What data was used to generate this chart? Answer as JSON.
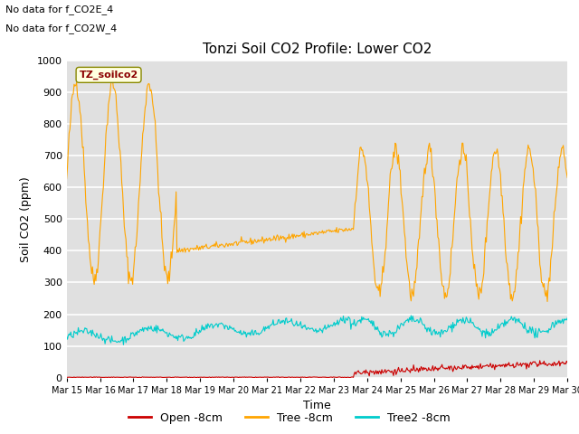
{
  "title": "Tonzi Soil CO2 Profile: Lower CO2",
  "xlabel": "Time",
  "ylabel": "Soil CO2 (ppm)",
  "ylim": [
    0,
    1000
  ],
  "plot_bg_color": "#e0e0e0",
  "annotation_text1": "No data for f_CO2E_4",
  "annotation_text2": "No data for f_CO2W_4",
  "legend_label1": "Open -8cm",
  "legend_label2": "Tree -8cm",
  "legend_label3": "Tree2 -8cm",
  "color_open": "#cc0000",
  "color_tree": "#ffa500",
  "color_tree2": "#00cccc",
  "watermark_text": "TZ_soilco2",
  "xtick_labels": [
    "Mar 15",
    "Mar 16",
    "Mar 17",
    "Mar 18",
    "Mar 19",
    "Mar 20",
    "Mar 21",
    "Mar 22",
    "Mar 23",
    "Mar 24",
    "Mar 25",
    "Mar 26",
    "Mar 27",
    "Mar 28",
    "Mar 29",
    "Mar 30"
  ],
  "ytick_values": [
    0,
    100,
    200,
    300,
    400,
    500,
    600,
    700,
    800,
    900,
    1000
  ],
  "n_points": 600
}
